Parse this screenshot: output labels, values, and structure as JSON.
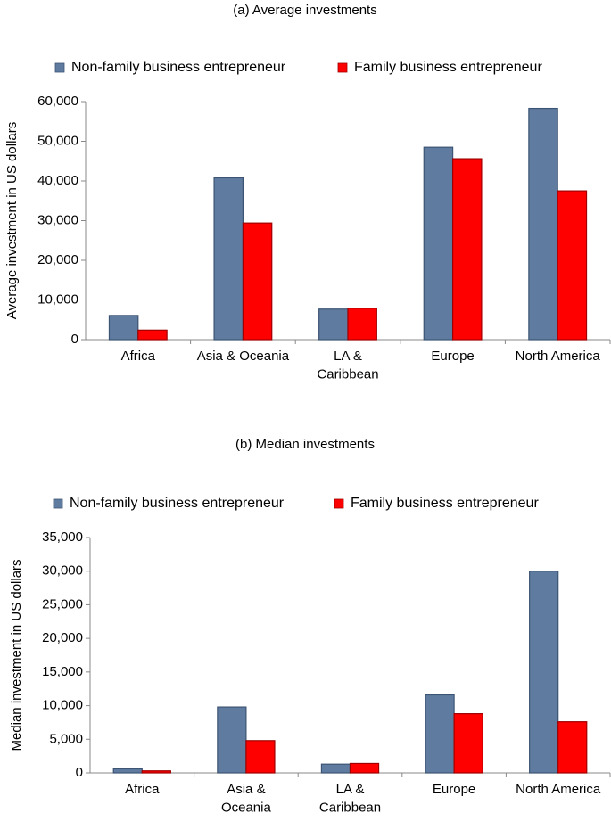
{
  "colors": {
    "non_family": "#5f7b9f",
    "non_family_edge": "#3d5574",
    "family": "#ff0000",
    "family_edge": "#a00000",
    "axis": "#888888"
  },
  "chart_data": [
    {
      "type": "bar",
      "title": "(a) Average investments",
      "ylabel": "Average investment in US dollars",
      "xlabel": "",
      "ylim": [
        0,
        60000
      ],
      "yticks": [
        0,
        10000,
        20000,
        30000,
        40000,
        50000,
        60000
      ],
      "ytick_labels": [
        "0",
        "10,000",
        "20,000",
        "30,000",
        "40,000",
        "50,000",
        "60,000"
      ],
      "categories": [
        [
          "Africa"
        ],
        [
          "Asia & Oceania"
        ],
        [
          "LA &",
          "Caribbean"
        ],
        [
          "Europe"
        ],
        [
          "North America"
        ]
      ],
      "series": [
        {
          "name": "Non-family business entrepreneur",
          "values": [
            6100,
            40800,
            7700,
            48500,
            58300
          ]
        },
        {
          "name": "Family business entrepreneur",
          "values": [
            2400,
            29400,
            7900,
            45600,
            37500
          ]
        }
      ],
      "legend": "top"
    },
    {
      "type": "bar",
      "title": "(b) Median investments",
      "ylabel": "Median investment in US dollars",
      "xlabel": "",
      "ylim": [
        0,
        35000
      ],
      "yticks": [
        0,
        5000,
        10000,
        15000,
        20000,
        25000,
        30000,
        35000
      ],
      "ytick_labels": [
        "0",
        "5,000",
        "10,000",
        "15,000",
        "20,000",
        "25,000",
        "30,000",
        "35,000"
      ],
      "categories": [
        [
          "Africa"
        ],
        [
          "Asia &",
          "Oceania"
        ],
        [
          "LA &",
          "Caribbean"
        ],
        [
          "Europe"
        ],
        [
          "North America"
        ]
      ],
      "series": [
        {
          "name": "Non-family business entrepreneur",
          "values": [
            600,
            9800,
            1300,
            11600,
            30000
          ]
        },
        {
          "name": "Family business entrepreneur",
          "values": [
            300,
            4800,
            1400,
            8800,
            7600
          ]
        }
      ],
      "legend": "top"
    }
  ]
}
